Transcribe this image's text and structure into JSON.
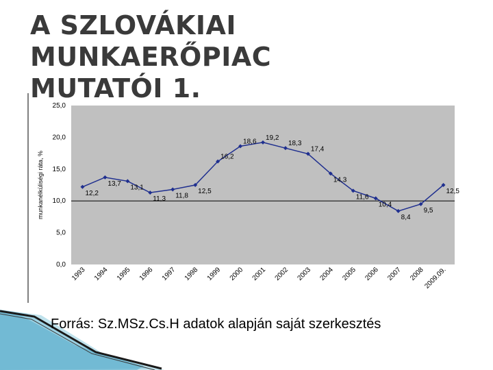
{
  "slide": {
    "title_line1": "A SZLOVÁKIAI MUNKAERŐPIAC",
    "title_line2": "MUTATÓI 1.",
    "source": "Forrás: Sz.MSz.Cs.H adatok alapján saját szerkesztés"
  },
  "colors": {
    "plot_bg": "#c0c0c0",
    "series": "#1f2f8f",
    "reference_line": "#000000",
    "title": "#3a3a3a"
  },
  "chart_data": {
    "type": "line",
    "ylabel": "munkanélküliségi ráta, %",
    "ylim": [
      0,
      25
    ],
    "yticks": [
      "0,0",
      "5,0",
      "10,0",
      "15,0",
      "20,0",
      "25,0"
    ],
    "categories": [
      "1993",
      "1994",
      "1995",
      "1996",
      "1997",
      "1998",
      "1999",
      "2000",
      "2001",
      "2002",
      "2003",
      "2004",
      "2005",
      "2006",
      "2007",
      "2008",
      "2009.09."
    ],
    "series": [
      {
        "values": [
          12.2,
          13.7,
          13.1,
          11.3,
          11.8,
          12.5,
          16.2,
          18.6,
          19.2,
          18.3,
          17.4,
          14.3,
          11.6,
          10.4,
          8.4,
          9.5,
          12.5
        ],
        "labels": [
          "12,2",
          "13,7",
          "13,1",
          "11,3",
          "11,8",
          "12,5",
          "16,2",
          "18,6",
          "19,2",
          "18,3",
          "17,4",
          "14,3",
          "11,6",
          "10,4",
          "8,4",
          "9,5",
          "12,5"
        ]
      }
    ],
    "reference_line": 10,
    "grid": false,
    "legend": "none"
  }
}
